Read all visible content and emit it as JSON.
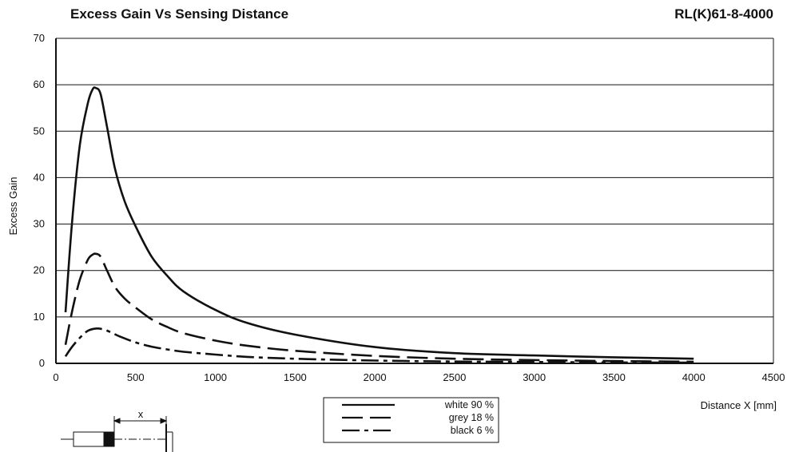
{
  "header": {
    "title": "Excess Gain Vs Sensing Distance",
    "model": "RL(K)61-8-4000"
  },
  "chart_data": {
    "type": "line",
    "title": "Excess Gain Vs Sensing Distance",
    "xlabel": "Distance X [mm]",
    "ylabel": "Excess Gain",
    "xlim": [
      0,
      4500
    ],
    "ylim": [
      0,
      70
    ],
    "xticks": [
      0,
      500,
      1000,
      1500,
      2000,
      2500,
      3000,
      3500,
      4000,
      4500
    ],
    "yticks": [
      0,
      10,
      20,
      30,
      40,
      50,
      60,
      70
    ],
    "grid": "horizontal",
    "legend_position": "below-center",
    "series": [
      {
        "name": "white 90 %",
        "style": "solid",
        "x": [
          60,
          100,
          150,
          200,
          230,
          250,
          280,
          320,
          370,
          430,
          500,
          600,
          700,
          800,
          1000,
          1200,
          1500,
          2000,
          2500,
          3000,
          3500,
          4000
        ],
        "y": [
          11,
          30,
          47,
          56,
          59,
          59.3,
          58,
          51,
          42,
          35,
          29.5,
          23,
          18.8,
          15.5,
          11.5,
          8.7,
          6.2,
          3.5,
          2.2,
          1.7,
          1.3,
          1.0
        ]
      },
      {
        "name": "grey 18 %",
        "style": "long-dash",
        "x": [
          60,
          100,
          150,
          200,
          230,
          250,
          280,
          320,
          370,
          430,
          500,
          600,
          700,
          800,
          1000,
          1200,
          1500,
          2000,
          2500,
          3000,
          3500,
          4000
        ],
        "y": [
          4,
          11,
          18,
          22.3,
          23.4,
          23.6,
          23,
          20,
          16.5,
          14,
          12,
          9.5,
          7.8,
          6.5,
          4.9,
          3.8,
          2.7,
          1.6,
          1.0,
          0.7,
          0.5,
          0.35
        ]
      },
      {
        "name": "black 6 %",
        "style": "dash-dot",
        "x": [
          60,
          100,
          150,
          200,
          250,
          300,
          350,
          400,
          500,
          600,
          700,
          800,
          1000,
          1200,
          1500,
          2000,
          2500,
          3000,
          3500,
          4000
        ],
        "y": [
          1.5,
          3.5,
          5.5,
          7,
          7.5,
          7.3,
          6.6,
          5.8,
          4.5,
          3.6,
          3.0,
          2.5,
          1.9,
          1.4,
          1.0,
          0.6,
          0.4,
          0.3,
          0.2,
          0.15
        ]
      }
    ]
  },
  "diagram": {
    "distance_label": "x"
  }
}
